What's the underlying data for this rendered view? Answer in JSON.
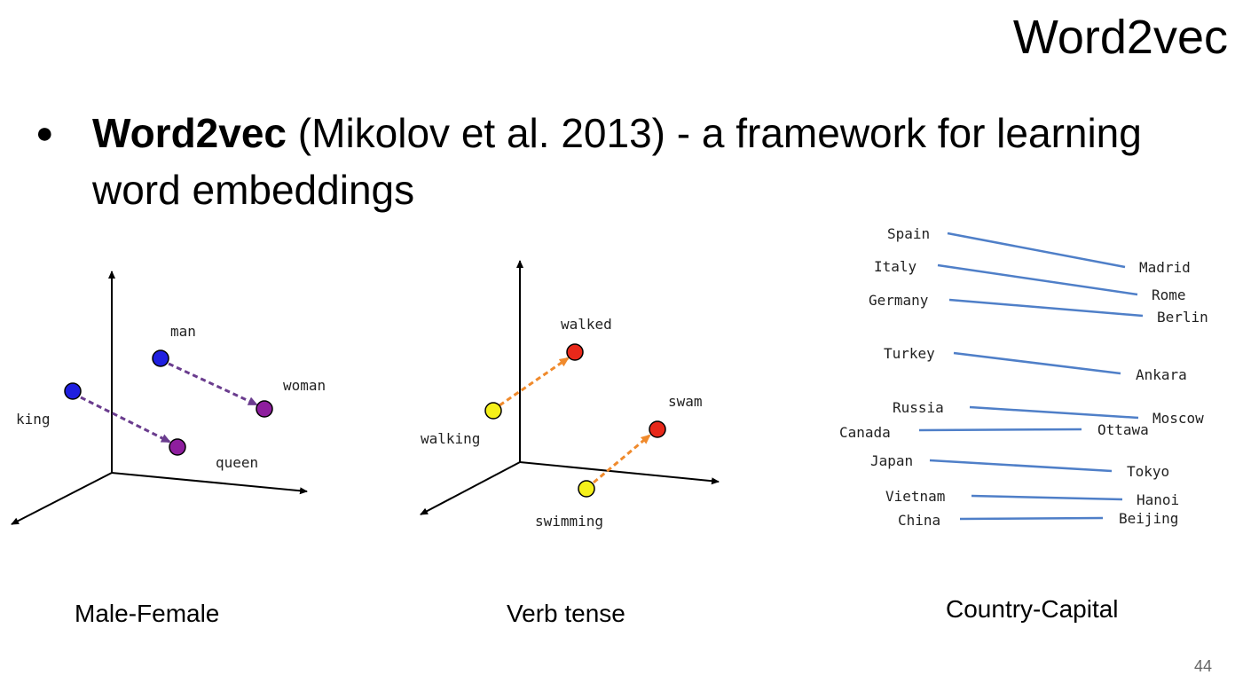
{
  "slide": {
    "title": "Word2vec",
    "bullet": {
      "bold": "Word2vec",
      "rest": " (Mikolov et al. 2013) - a framework for learning word embeddings"
    },
    "page_number": "44"
  },
  "panels": {
    "male_female": {
      "caption": "Male-Female",
      "points": {
        "man": "man",
        "woman": "woman",
        "king": "king",
        "queen": "queen"
      },
      "colors": {
        "male": "#1f1fe0",
        "female": "#8e1e9e",
        "arrow": "#6a3c8e"
      }
    },
    "verb_tense": {
      "caption": "Verb tense",
      "points": {
        "walked": "walked",
        "walking": "walking",
        "swam": "swam",
        "swimming": "swimming"
      },
      "colors": {
        "present": "#f5f01a",
        "past": "#e8281a",
        "arrow": "#f08a2c"
      }
    },
    "country_capital": {
      "caption": "Country-Capital",
      "line_color": "#4f7fc8",
      "pairs": [
        {
          "country": "Spain",
          "capital": "Madrid"
        },
        {
          "country": "Italy",
          "capital": "Rome"
        },
        {
          "country": "Germany",
          "capital": "Berlin"
        },
        {
          "country": "Turkey",
          "capital": "Ankara"
        },
        {
          "country": "Russia",
          "capital": "Moscow"
        },
        {
          "country": "Canada",
          "capital": "Ottawa"
        },
        {
          "country": "Japan",
          "capital": "Tokyo"
        },
        {
          "country": "Vietnam",
          "capital": "Hanoi"
        },
        {
          "country": "China",
          "capital": "Beijing"
        }
      ]
    }
  }
}
